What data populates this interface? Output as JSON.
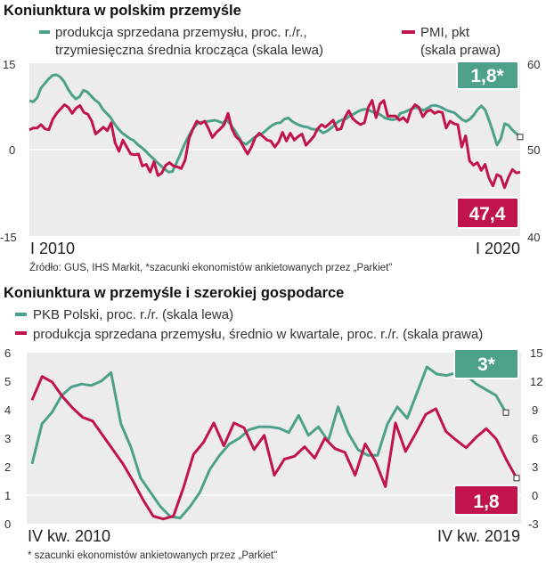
{
  "colors": {
    "teal": "#4da08a",
    "red": "#c0144a",
    "plot_bg": "#ececec"
  },
  "chart_data": [
    {
      "type": "line",
      "title": "Koniunktura w polskim przemyśle",
      "left_axis": {
        "ylim": [
          -15,
          15
        ],
        "ticks": [
          "15",
          "0",
          "-15"
        ]
      },
      "right_axis": {
        "ylim": [
          40,
          60
        ],
        "ticks": [
          "60",
          "50",
          "40"
        ]
      },
      "x_labels": {
        "start": "I 2010",
        "end": "I 2020"
      },
      "series": [
        {
          "name": "produkcja sprzedana przemysłu, proc. r./r., trzymiesięczna średnia krocząca (skala lewa)",
          "legend": [
            "produkcja sprzedana przemysłu, proc. r./r.,",
            "trzymiesięczna średnia krocząca  (skala lewa)"
          ],
          "axis": "left",
          "color": "#4da08a",
          "values": [
            8.5,
            8.3,
            9.0,
            10.7,
            11.5,
            12.3,
            12.9,
            13.0,
            12.6,
            11.8,
            10.5,
            9.5,
            8.8,
            9.2,
            10.3,
            10.0,
            9.3,
            8.6,
            8.1,
            7.0,
            6.3,
            5.6,
            4.5,
            3.6,
            2.9,
            2.4,
            1.9,
            1.6,
            0.9,
            0.4,
            -0.2,
            -0.9,
            -1.5,
            -2.2,
            -2.8,
            -3.4,
            -3.9,
            -3.8,
            -2.4,
            -0.9,
            0.7,
            2.1,
            3.3,
            4.2,
            4.7,
            4.8,
            4.9,
            5.0,
            5.1,
            4.9,
            4.6,
            5.2,
            4.4,
            3.5,
            2.4,
            1.3,
            0.9,
            1.4,
            2.0,
            2.4,
            2.7,
            3.2,
            3.8,
            4.3,
            4.6,
            4.7,
            5.3,
            5.5,
            4.9,
            4.5,
            4.2,
            4.0,
            3.9,
            3.6,
            3.5,
            3.4,
            2.9,
            3.2,
            3.7,
            4.3,
            4.9,
            5.2,
            5.4,
            5.9,
            6.2,
            6.6,
            6.9,
            7.0,
            6.8,
            6.5,
            6.3,
            6.0,
            5.5,
            5.3,
            5.2,
            5.3,
            6.3,
            6.5,
            6.8,
            7.1,
            7.3,
            7.1,
            6.8,
            7.2,
            7.6,
            7.7,
            7.5,
            7.2,
            6.8,
            6.6,
            6.4,
            5.8,
            5.2,
            4.9,
            5.3,
            6.0,
            7.0,
            7.6,
            6.8,
            5.0,
            3.0,
            0.8,
            1.9,
            4.5,
            4.2,
            3.4,
            2.8,
            2.2
          ],
          "badge": "1,8*"
        },
        {
          "name": "PMI, pkt (skala prawa)",
          "legend": [
            "PMI, pkt",
            "(skala prawa)"
          ],
          "axis": "right",
          "color": "#c0144a",
          "values": [
            52.3,
            52.5,
            52.5,
            52.9,
            52.4,
            52.3,
            53.5,
            54.2,
            54.7,
            55.2,
            54.9,
            54.2,
            54.8,
            55.1,
            54.3,
            54.1,
            53.3,
            51.8,
            52.2,
            52.6,
            52.2,
            53.1,
            50.8,
            49.8,
            51.1,
            50.3,
            49.5,
            49.4,
            49.5,
            48.1,
            48.3,
            47.4,
            48.6,
            47.0,
            47.3,
            48.2,
            48.5,
            48.1,
            48.0,
            47.8,
            48.8,
            51.3,
            52.4,
            53.3,
            53.0,
            53.3,
            52.4,
            51.4,
            52.0,
            52.4,
            52.9,
            54.2,
            52.4,
            51.5,
            51.1,
            50.3,
            49.5,
            50.3,
            51.4,
            51.9,
            51.5,
            51.1,
            51.0,
            50.3,
            50.9,
            52.0,
            51.0,
            51.9,
            51.1,
            51.5,
            51.8,
            50.5,
            51.0,
            51.5,
            52.4,
            52.9,
            52.6,
            53.0,
            53.4,
            52.3,
            52.4,
            53.7,
            54.5,
            53.6,
            53.2,
            52.9,
            53.1,
            54.9,
            55.7,
            53.7,
            55.3,
            55.7,
            53.9,
            53.9,
            53.9,
            53.4,
            53.7,
            53.2,
            54.6,
            55.2,
            54.9,
            53.8,
            54.4,
            54.6,
            54.2,
            54.4,
            54.3,
            52.5,
            53.3,
            53.0,
            52.9,
            50.3,
            51.6,
            48.7,
            48.2,
            48.5,
            47.6,
            48.3,
            46.7,
            45.8,
            47.1,
            46.9,
            45.6,
            46.8,
            47.7,
            47.3,
            47.4
          ],
          "badge": "47,4"
        }
      ],
      "source_note": "Źródło: GUS, IHS Markit, *szacunki ekonomistów ankietowanych przez „Parkiet\""
    },
    {
      "type": "line",
      "title": "Koniunktura w przemyśle i szerokiej gospodarce",
      "left_axis": {
        "ylim": [
          0,
          6
        ],
        "ticks": [
          "6",
          "5",
          "4",
          "3",
          "2",
          "1",
          "0"
        ]
      },
      "right_axis": {
        "ylim": [
          -3,
          15
        ],
        "ticks": [
          "15",
          "12",
          "9",
          "6",
          "3",
          "0",
          "-3"
        ]
      },
      "x_labels": {
        "start": "IV kw. 2010",
        "end": "IV kw. 2019"
      },
      "series": [
        {
          "name": "PKB Polski, proc. r./r. (skala lewa)",
          "legend": [
            "PKB Polski, proc. r./r. (skala lewa)"
          ],
          "axis": "left",
          "color": "#4da08a",
          "values": [
            2.1,
            3.5,
            3.9,
            4.5,
            4.8,
            4.9,
            4.85,
            5.0,
            5.3,
            3.5,
            2.7,
            1.6,
            1.1,
            0.6,
            0.25,
            0.2,
            0.6,
            1.1,
            1.9,
            2.4,
            2.8,
            3.0,
            3.3,
            3.4,
            3.4,
            3.35,
            3.2,
            3.8,
            3.1,
            3.4,
            2.9,
            4.1,
            3.2,
            2.6,
            2.4,
            2.4,
            3.5,
            4.1,
            3.7,
            4.6,
            5.5,
            5.25,
            5.2,
            5.3,
            5.2,
            4.9,
            4.7,
            4.5,
            3.9
          ],
          "badge": "3*"
        },
        {
          "name": "produkcja sprzedana przemysłu, średnio w kwartale, proc. r./r. (skala prawa)",
          "legend": [
            "produkcja sprzedana przemysłu, średnio w kwartale, proc. r./r. (skala prawa)"
          ],
          "axis": "right",
          "color": "#c0144a",
          "values": [
            10.0,
            12.5,
            11.9,
            10.4,
            9.2,
            8.2,
            7.8,
            6.3,
            4.8,
            3.3,
            1.5,
            -0.5,
            -2.2,
            -2.5,
            -2.2,
            0.8,
            4.3,
            5.6,
            7.6,
            5.2,
            7.6,
            7.1,
            4.8,
            6.3,
            2.1,
            3.8,
            4.1,
            5.1,
            3.9,
            6.0,
            4.9,
            4.5,
            2.1,
            5.4,
            3.6,
            0.9,
            7.6,
            4.6,
            6.5,
            8.5,
            9.1,
            6.7,
            5.8,
            5.0,
            6.1,
            7.0,
            5.9,
            3.7,
            1.8
          ],
          "badge": "1,8"
        }
      ],
      "source_note": "* szacunki ekonomistów ankietowanych przez „Parkiet\""
    }
  ]
}
